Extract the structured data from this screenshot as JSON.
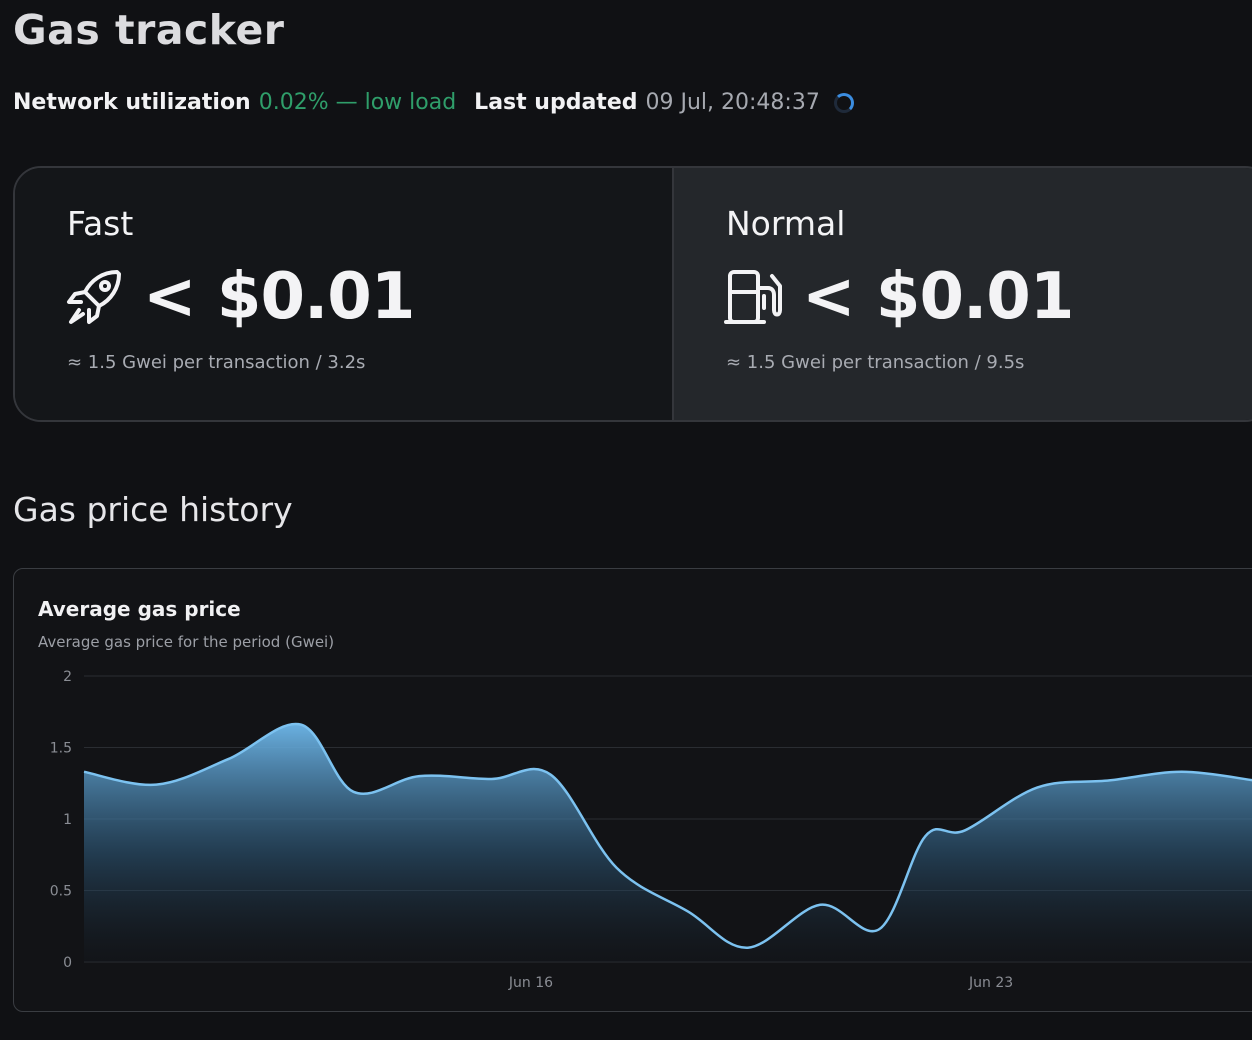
{
  "page_title": "Gas tracker",
  "status": {
    "utilization_label": "Network utilization",
    "utilization_value": "0.02% — low load",
    "updated_label": "Last updated",
    "updated_value": "09 Jul, 20:48:37"
  },
  "cards": {
    "fast": {
      "name": "Fast",
      "icon": "rocket-icon",
      "price": "< $0.01",
      "detail": "≈ 1.5 Gwei per transaction / 3.2s"
    },
    "normal": {
      "name": "Normal",
      "icon": "fuel-pump-icon",
      "price": "< $0.01",
      "detail": "≈ 1.5 Gwei per transaction / 9.5s"
    }
  },
  "history": {
    "section_title": "Gas price history"
  },
  "colors": {
    "accent_green": "#2f9e6a",
    "line_blue": "#7cc2f0",
    "spinner_blue": "#3b8de0"
  },
  "chart_data": {
    "type": "area",
    "title": "Average gas price",
    "subtitle": "Average gas price for the period (Gwei)",
    "ylim": [
      0,
      2
    ],
    "y_ticks": [
      "2",
      "1.5",
      "1",
      "0.5",
      "0"
    ],
    "x_tick_labels": [
      {
        "label": "Jun 16",
        "day": 16
      },
      {
        "label": "Jun 23",
        "day": 23
      }
    ],
    "x_days": [
      9.2,
      10.3,
      11.4,
      12.5,
      13.3,
      14.3,
      15.4,
      16.3,
      17.3,
      18.4,
      19.3,
      20.4,
      21.3,
      22.0,
      22.6,
      23.7,
      24.8,
      25.9,
      27.0
    ],
    "values": [
      1.33,
      1.24,
      1.42,
      1.66,
      1.19,
      1.3,
      1.28,
      1.31,
      0.66,
      0.35,
      0.1,
      0.4,
      0.23,
      0.88,
      0.92,
      1.22,
      1.27,
      1.33,
      1.27
    ],
    "grid": true
  }
}
